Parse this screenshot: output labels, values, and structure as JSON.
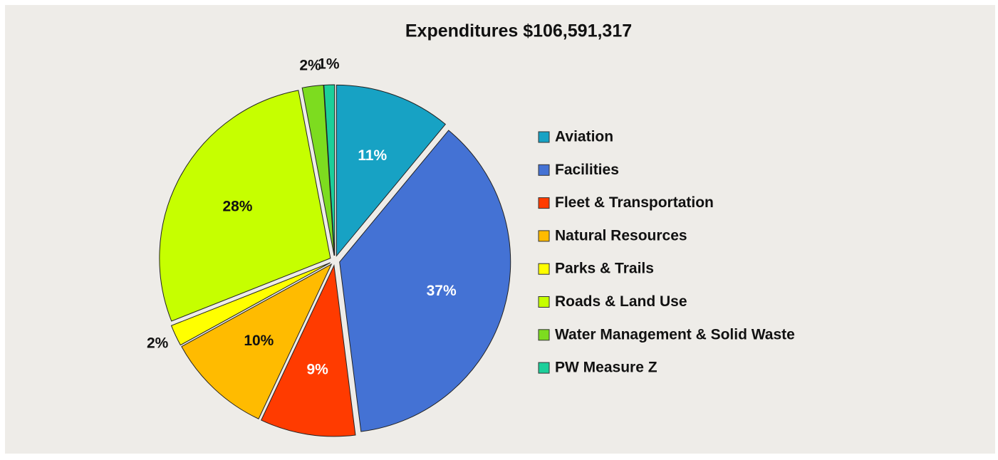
{
  "chart_data": {
    "type": "pie",
    "title": "Expenditures $106,591,317",
    "categories": [
      "Aviation",
      "Facilities",
      "Fleet & Transportation",
      "Natural Resources",
      "Parks & Trails",
      "Roads & Land Use",
      "Water Management & Solid Waste",
      "PW Measure Z"
    ],
    "values": [
      11,
      37,
      9,
      10,
      2,
      28,
      2,
      1
    ],
    "value_labels": [
      "11%",
      "37%",
      "9%",
      "10%",
      "2%",
      "28%",
      "2%",
      "1%"
    ],
    "colors": [
      "#17a2c4",
      "#4472d4",
      "#ff3b00",
      "#ffbb00",
      "#ffff00",
      "#c6ff00",
      "#7ddc1f",
      "#1ccf9a"
    ],
    "legend": "right"
  }
}
